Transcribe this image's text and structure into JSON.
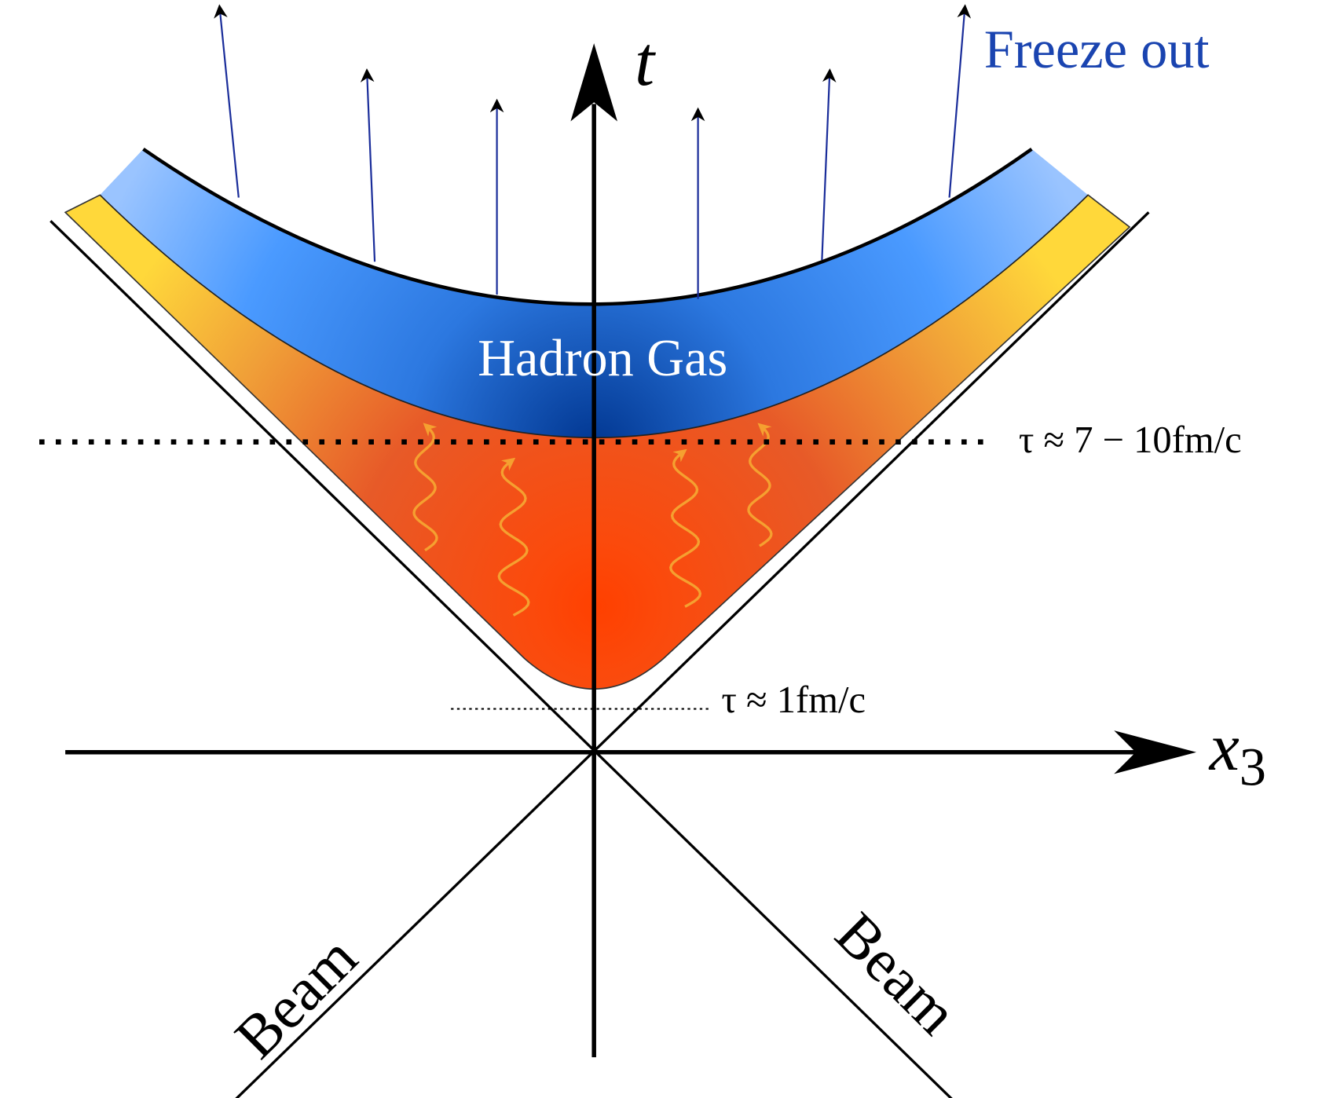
{
  "axes": {
    "time": "t",
    "space": "x",
    "space_subscript": "3"
  },
  "labels": {
    "freeze_out": "Freeze out",
    "hadron_gas": "Hadron Gas",
    "tau_late": "τ ≈ 7 − 10fm/c",
    "tau_early": "τ ≈ 1fm/c",
    "beam_left": "Beam",
    "beam_right": "Beam"
  }
}
